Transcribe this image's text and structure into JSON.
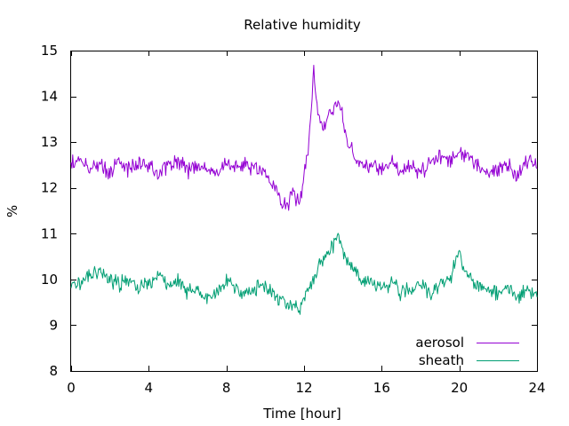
{
  "chart_data": {
    "type": "line",
    "title": "Relative humidity",
    "xlabel": "Time [hour]",
    "ylabel": "%",
    "xlim": [
      0,
      24
    ],
    "ylim": [
      8,
      15
    ],
    "xticks": [
      0,
      4,
      8,
      12,
      16,
      20,
      24
    ],
    "yticks": [
      8,
      9,
      10,
      11,
      12,
      13,
      14,
      15
    ],
    "grid": false,
    "legend_position": "bottom-right",
    "series": [
      {
        "name": "aerosol",
        "color": "#9400d3",
        "x": [
          0,
          0.5,
          1,
          1.5,
          2,
          2.5,
          3,
          3.5,
          4,
          4.5,
          5,
          5.5,
          6,
          6.5,
          7,
          7.5,
          8,
          8.5,
          9,
          9.5,
          10,
          10.25,
          10.5,
          10.75,
          11,
          11.25,
          11.5,
          11.75,
          12,
          12.25,
          12.5,
          12.75,
          13,
          13.25,
          13.5,
          13.75,
          14,
          14.25,
          14.5,
          14.75,
          15,
          15.5,
          16,
          16.5,
          17,
          17.5,
          18,
          18.5,
          19,
          19.5,
          20,
          20.5,
          21,
          21.5,
          22,
          22.5,
          23,
          23.5,
          24
        ],
        "y": [
          12.5,
          12.6,
          12.4,
          12.5,
          12.3,
          12.6,
          12.4,
          12.5,
          12.5,
          12.3,
          12.5,
          12.6,
          12.4,
          12.5,
          12.4,
          12.3,
          12.5,
          12.4,
          12.5,
          12.4,
          12.3,
          12.1,
          12.0,
          11.8,
          11.6,
          11.7,
          11.9,
          11.6,
          12.3,
          13.0,
          14.6,
          13.5,
          13.3,
          13.5,
          13.7,
          13.9,
          13.5,
          13.0,
          12.8,
          12.6,
          12.5,
          12.5,
          12.4,
          12.6,
          12.3,
          12.5,
          12.3,
          12.5,
          12.7,
          12.6,
          12.8,
          12.6,
          12.5,
          12.3,
          12.4,
          12.5,
          12.3,
          12.6,
          12.5
        ]
      },
      {
        "name": "sheath",
        "color": "#009e73",
        "x": [
          0,
          0.5,
          1,
          1.5,
          2,
          2.5,
          3,
          3.5,
          4,
          4.5,
          5,
          5.5,
          6,
          6.5,
          7,
          7.5,
          8,
          8.5,
          9,
          9.5,
          10,
          10.25,
          10.5,
          10.75,
          11,
          11.25,
          11.5,
          11.75,
          12,
          12.25,
          12.5,
          12.75,
          13,
          13.25,
          13.5,
          13.75,
          14,
          14.25,
          14.5,
          14.75,
          15,
          15.5,
          16,
          16.5,
          17,
          17.5,
          18,
          18.5,
          19,
          19.5,
          20,
          20.5,
          21,
          21.5,
          22,
          22.5,
          23,
          23.5,
          24
        ],
        "y": [
          10.0,
          9.9,
          10.1,
          10.2,
          10.0,
          9.9,
          10.0,
          9.8,
          9.9,
          10.1,
          9.9,
          10.0,
          9.7,
          9.8,
          9.6,
          9.7,
          10.0,
          9.8,
          9.7,
          9.8,
          9.9,
          9.7,
          9.6,
          9.6,
          9.5,
          9.4,
          9.5,
          9.3,
          9.6,
          9.8,
          10.0,
          10.3,
          10.4,
          10.6,
          10.7,
          10.9,
          10.6,
          10.4,
          10.2,
          10.1,
          10.0,
          9.9,
          9.8,
          9.9,
          9.7,
          9.8,
          9.9,
          9.7,
          9.9,
          10.0,
          10.6,
          10.0,
          9.9,
          9.8,
          9.7,
          9.8,
          9.6,
          9.8,
          9.6
        ]
      }
    ]
  }
}
